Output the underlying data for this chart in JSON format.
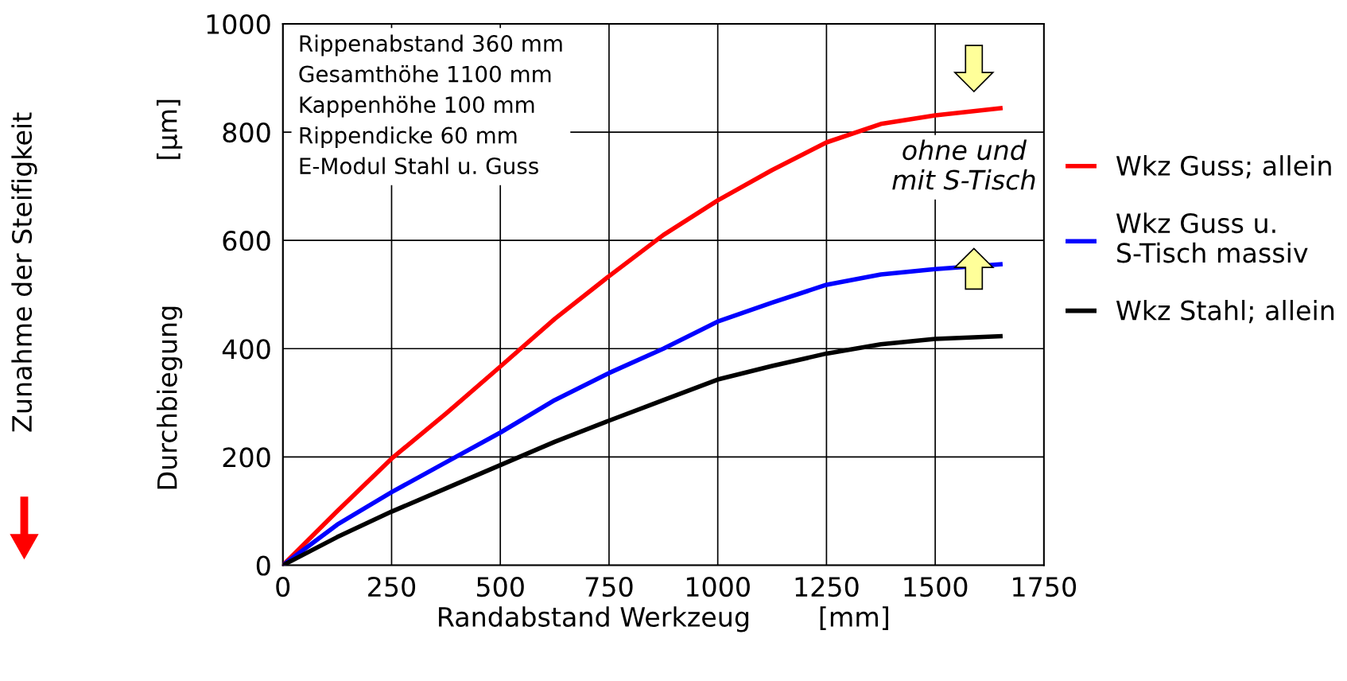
{
  "chart_data": {
    "type": "line",
    "xlabel": "Randabstand Werkzeug        [mm]",
    "ylabel": "Durchbiegung                 [µm]",
    "xlim": [
      0,
      1750
    ],
    "xticks": [
      0,
      250,
      500,
      750,
      1000,
      1250,
      1500,
      1750
    ],
    "ylim": [
      0,
      1000
    ],
    "yticks": [
      0,
      200,
      400,
      600,
      800,
      1000
    ],
    "grid": true,
    "legend": "right",
    "line_style": "solid",
    "marker": "none",
    "annotations": [
      "Rippenabstand 360 mm\nGesamthöhe 1100 mm\nKappenhöhe 100 mm\nRippendicke 60 mm\nE-Modul Stahl u. Guss",
      "ohne und\nmit S-Tisch",
      "Zunahme der Steifigkeit"
    ],
    "series": [
      {
        "name": "Wkz Guss; allein",
        "color": "#ff0000",
        "x": [
          0,
          125,
          250,
          375,
          500,
          625,
          750,
          875,
          1000,
          1125,
          1250,
          1375,
          1500,
          1650
        ],
        "values": [
          0,
          100,
          197,
          280,
          367,
          455,
          534,
          610,
          674,
          730,
          781,
          815,
          831,
          844
        ]
      },
      {
        "name": "Wkz Guss u.\nS-Tisch massiv",
        "color": "#0000ff",
        "x": [
          0,
          125,
          250,
          375,
          500,
          625,
          750,
          875,
          1000,
          1125,
          1250,
          1375,
          1500,
          1650
        ],
        "values": [
          0,
          75,
          135,
          190,
          245,
          305,
          355,
          400,
          450,
          485,
          518,
          537,
          547,
          556
        ]
      },
      {
        "name": "Wkz Stahl; allein",
        "color": "#000000",
        "x": [
          0,
          125,
          250,
          375,
          500,
          625,
          750,
          875,
          1000,
          1125,
          1250,
          1375,
          1500,
          1650
        ],
        "values": [
          0,
          52,
          99,
          142,
          185,
          228,
          267,
          305,
          343,
          368,
          391,
          408,
          418,
          423
        ]
      }
    ]
  }
}
